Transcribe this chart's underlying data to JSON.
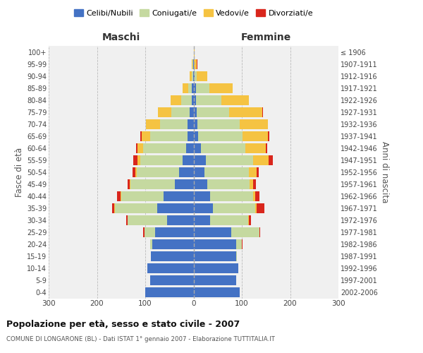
{
  "age_groups": [
    "0-4",
    "5-9",
    "10-14",
    "15-19",
    "20-24",
    "25-29",
    "30-34",
    "35-39",
    "40-44",
    "45-49",
    "50-54",
    "55-59",
    "60-64",
    "65-69",
    "70-74",
    "75-79",
    "80-84",
    "85-89",
    "90-94",
    "95-99",
    "100+"
  ],
  "birth_years": [
    "2002-2006",
    "1997-2001",
    "1992-1996",
    "1987-1991",
    "1982-1986",
    "1977-1981",
    "1972-1976",
    "1967-1971",
    "1962-1966",
    "1957-1961",
    "1952-1956",
    "1947-1951",
    "1942-1946",
    "1937-1941",
    "1932-1936",
    "1927-1931",
    "1922-1926",
    "1917-1921",
    "1912-1916",
    "1907-1911",
    "≤ 1906"
  ],
  "colors": {
    "celibi": "#4472c4",
    "coniugati": "#c5d9a0",
    "vedovi": "#f5c342",
    "divorziati": "#d9261c"
  },
  "maschi": {
    "celibi": [
      100,
      90,
      95,
      88,
      85,
      80,
      55,
      75,
      62,
      38,
      30,
      22,
      16,
      12,
      12,
      8,
      4,
      3,
      1,
      1,
      0
    ],
    "coniugati": [
      0,
      0,
      0,
      1,
      5,
      22,
      82,
      88,
      88,
      92,
      88,
      88,
      88,
      78,
      58,
      38,
      22,
      8,
      2,
      1,
      0
    ],
    "vedovi": [
      0,
      0,
      0,
      0,
      0,
      0,
      0,
      1,
      1,
      2,
      3,
      6,
      12,
      18,
      28,
      28,
      22,
      12,
      5,
      1,
      0
    ],
    "divorziati": [
      0,
      0,
      0,
      0,
      0,
      2,
      2,
      5,
      8,
      5,
      6,
      9,
      3,
      2,
      0,
      0,
      0,
      0,
      0,
      0,
      0
    ]
  },
  "femmine": {
    "celibi": [
      95,
      88,
      92,
      88,
      88,
      78,
      35,
      40,
      35,
      28,
      22,
      26,
      15,
      10,
      8,
      6,
      5,
      5,
      2,
      1,
      0
    ],
    "coniugati": [
      0,
      0,
      0,
      2,
      12,
      58,
      78,
      88,
      88,
      88,
      92,
      98,
      92,
      92,
      88,
      68,
      52,
      28,
      4,
      0,
      0
    ],
    "vedovi": [
      0,
      0,
      0,
      0,
      0,
      0,
      1,
      2,
      5,
      8,
      16,
      32,
      42,
      52,
      58,
      68,
      58,
      48,
      22,
      6,
      2
    ],
    "divorziati": [
      0,
      0,
      0,
      0,
      2,
      2,
      5,
      16,
      8,
      5,
      5,
      8,
      3,
      3,
      0,
      2,
      0,
      0,
      0,
      1,
      0
    ]
  },
  "title": "Popolazione per età, sesso e stato civile - 2007",
  "subtitle": "COMUNE DI LONGARONE (BL) - Dati ISTAT 1° gennaio 2007 - Elaborazione TUTTITALIA.IT",
  "xlabel_left": "Maschi",
  "xlabel_right": "Femmine",
  "ylabel_left": "Fasce di età",
  "ylabel_right": "Anni di nascita",
  "xlim": 300,
  "legend_labels": [
    "Celibi/Nubili",
    "Coniugati/e",
    "Vedovi/e",
    "Divorziati/e"
  ],
  "bg_color": "#f0f0f0",
  "grid_color": "#bbbbbb"
}
